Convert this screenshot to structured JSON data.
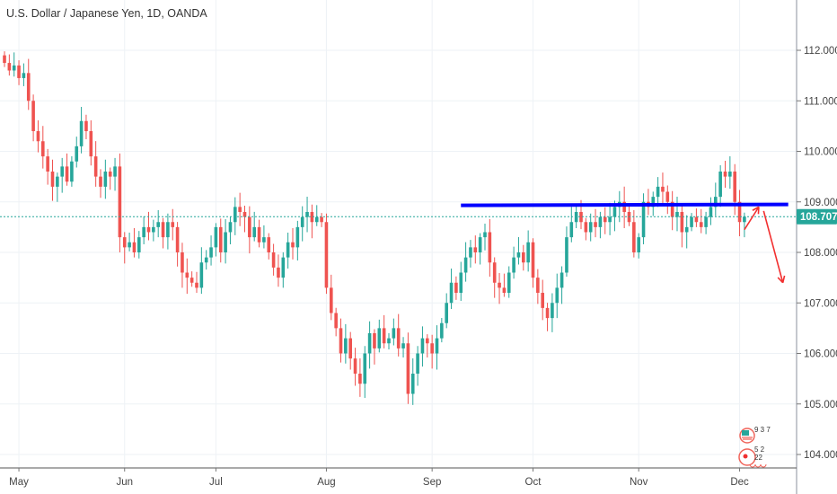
{
  "header": {
    "title": "U.S. Dollar / Japanese Yen, 1D, OANDA"
  },
  "events": {
    "earnings_label": "9 3 7",
    "dividends_label": "5 2 22"
  },
  "colors": {
    "up": "#26a69a",
    "down": "#ef5350",
    "trendline": "#0000ff",
    "arrow": "#f23030",
    "grid": "#eef2f6",
    "last_price": "#26a69a"
  },
  "chart_data": {
    "type": "candlestick",
    "title": "U.S. Dollar / Japanese Yen, 1D, OANDA",
    "ylim": [
      103.2,
      112.85
    ],
    "y_ticks": [
      "112.000",
      "111.000",
      "110.000",
      "109.000",
      "108.000",
      "107.000",
      "106.000",
      "105.000",
      "104.000"
    ],
    "y_tick_values": [
      112,
      111,
      110,
      109,
      108,
      107,
      106,
      105,
      104
    ],
    "x_ticks": [
      "May",
      "Jun",
      "Jul",
      "Aug",
      "Sep",
      "Oct",
      "Nov",
      "Dec"
    ],
    "x_tick_index": [
      3,
      25,
      44,
      67,
      89,
      110,
      132,
      153
    ],
    "last_price": 108.707,
    "last_price_label": "108.707",
    "first_open": 111.9,
    "closes": [
      111.75,
      111.6,
      111.7,
      111.45,
      111.55,
      111.0,
      110.4,
      110.2,
      109.9,
      109.6,
      109.3,
      109.5,
      109.7,
      109.4,
      109.8,
      110.1,
      110.6,
      110.4,
      109.9,
      109.5,
      109.3,
      109.6,
      109.5,
      109.7,
      108.3,
      108.1,
      108.2,
      108.0,
      108.3,
      108.5,
      108.4,
      108.5,
      108.6,
      108.3,
      108.6,
      108.5,
      108.0,
      107.6,
      107.5,
      107.4,
      107.3,
      107.8,
      107.9,
      108.1,
      108.5,
      108.0,
      108.4,
      108.6,
      108.9,
      108.8,
      108.7,
      108.3,
      108.5,
      108.2,
      108.3,
      108.0,
      107.7,
      107.5,
      107.9,
      108.2,
      108.1,
      108.5,
      108.7,
      108.8,
      108.6,
      108.7,
      108.6,
      107.3,
      106.8,
      106.5,
      106.0,
      106.3,
      105.9,
      105.6,
      105.4,
      106.0,
      106.4,
      106.1,
      106.5,
      106.2,
      106.3,
      106.5,
      106.1,
      106.2,
      105.2,
      105.6,
      106.0,
      106.3,
      106.2,
      106.0,
      106.3,
      106.6,
      107.0,
      107.4,
      107.2,
      107.6,
      107.9,
      108.1,
      108.0,
      108.3,
      108.4,
      107.8,
      107.4,
      107.3,
      107.2,
      107.6,
      107.9,
      108.0,
      107.8,
      108.2,
      107.5,
      107.2,
      106.9,
      106.7,
      107.0,
      107.3,
      107.6,
      108.3,
      108.6,
      108.8,
      108.6,
      108.4,
      108.6,
      108.5,
      108.7,
      108.6,
      108.7,
      108.9,
      109.0,
      108.8,
      108.6,
      108.0,
      108.3,
      109.0,
      108.9,
      109.1,
      109.3,
      109.2,
      109.0,
      108.7,
      108.8,
      108.4,
      108.5,
      108.7,
      108.6,
      108.5,
      108.7,
      108.9,
      109.1,
      109.6,
      109.5,
      109.6,
      109.0,
      108.6,
      108.707
    ],
    "annotations": {
      "resistance_line": {
        "from_index": 95,
        "to_index": 162,
        "price": 108.95
      },
      "arrow_up": {
        "from": [
          154,
          108.45
        ],
        "to": [
          157,
          108.9
        ]
      },
      "arrow_down": {
        "from": [
          158,
          108.82
        ],
        "to": [
          162,
          107.4
        ]
      }
    }
  }
}
